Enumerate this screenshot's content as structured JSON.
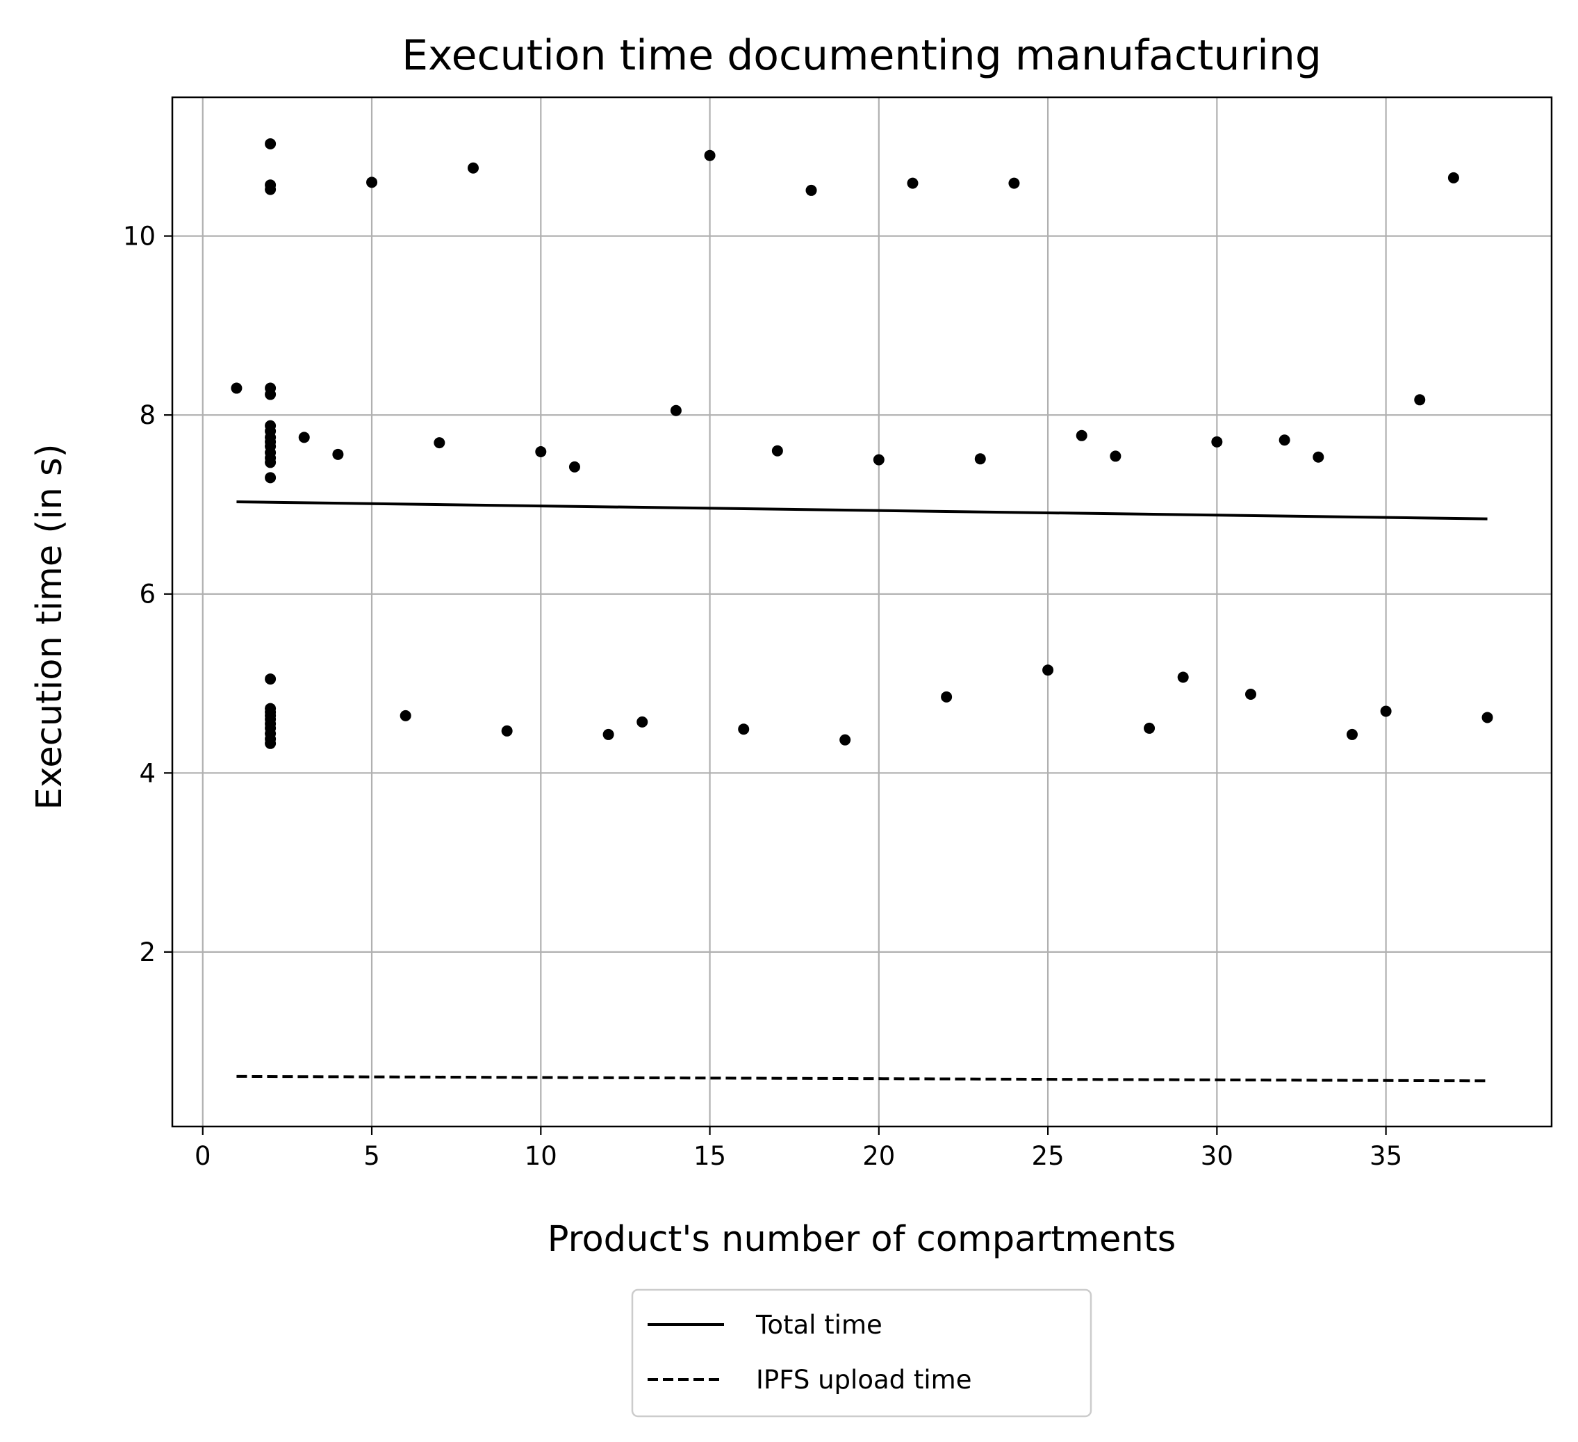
{
  "chart_data": {
    "type": "scatter",
    "title": "Execution time documenting manufacturing",
    "xlabel": "Product's number of compartments",
    "ylabel": "Execution time (in s)",
    "xlim": [
      -0.9,
      39.9
    ],
    "ylim": [
      0.05,
      11.55
    ],
    "xticks": [
      0,
      5,
      10,
      15,
      20,
      25,
      30,
      35
    ],
    "yticks": [
      2,
      4,
      6,
      8,
      10
    ],
    "grid": true,
    "legend": {
      "placement": "below"
    },
    "points": {
      "color": "#000000",
      "x": [
        1,
        2,
        2,
        2,
        2,
        2,
        2,
        2,
        2,
        2,
        2,
        2,
        2,
        2,
        2,
        2,
        2,
        2,
        2,
        2,
        2,
        2,
        2,
        2,
        2,
        3,
        4,
        5,
        6,
        7,
        8,
        9,
        10,
        11,
        12,
        13,
        14,
        15,
        16,
        17,
        18,
        19,
        20,
        21,
        22,
        23,
        24,
        25,
        26,
        27,
        28,
        29,
        30,
        31,
        32,
        33,
        34,
        35,
        36,
        37,
        38
      ],
      "y": [
        8.3,
        11.03,
        10.57,
        10.52,
        8.3,
        8.23,
        7.88,
        7.82,
        7.75,
        7.7,
        7.65,
        7.58,
        7.52,
        7.47,
        7.3,
        5.05,
        4.72,
        4.68,
        4.64,
        4.6,
        4.55,
        4.5,
        4.44,
        4.38,
        4.33,
        7.75,
        7.56,
        10.6,
        4.64,
        7.69,
        10.76,
        4.47,
        7.59,
        7.42,
        4.43,
        4.57,
        8.05,
        10.9,
        4.49,
        7.6,
        10.51,
        4.37,
        7.5,
        10.59,
        4.85,
        7.51,
        10.59,
        5.15,
        7.77,
        7.54,
        4.5,
        5.07,
        7.7,
        4.88,
        7.72,
        7.53,
        4.43,
        4.69,
        8.17,
        10.65,
        4.62
      ]
    },
    "series": [
      {
        "name": "Total time",
        "style": "solid",
        "x": [
          1,
          38
        ],
        "y": [
          7.03,
          6.84
        ]
      },
      {
        "name": "IPFS upload time",
        "style": "dashed",
        "x": [
          1,
          38
        ],
        "y": [
          0.61,
          0.56
        ]
      }
    ]
  }
}
